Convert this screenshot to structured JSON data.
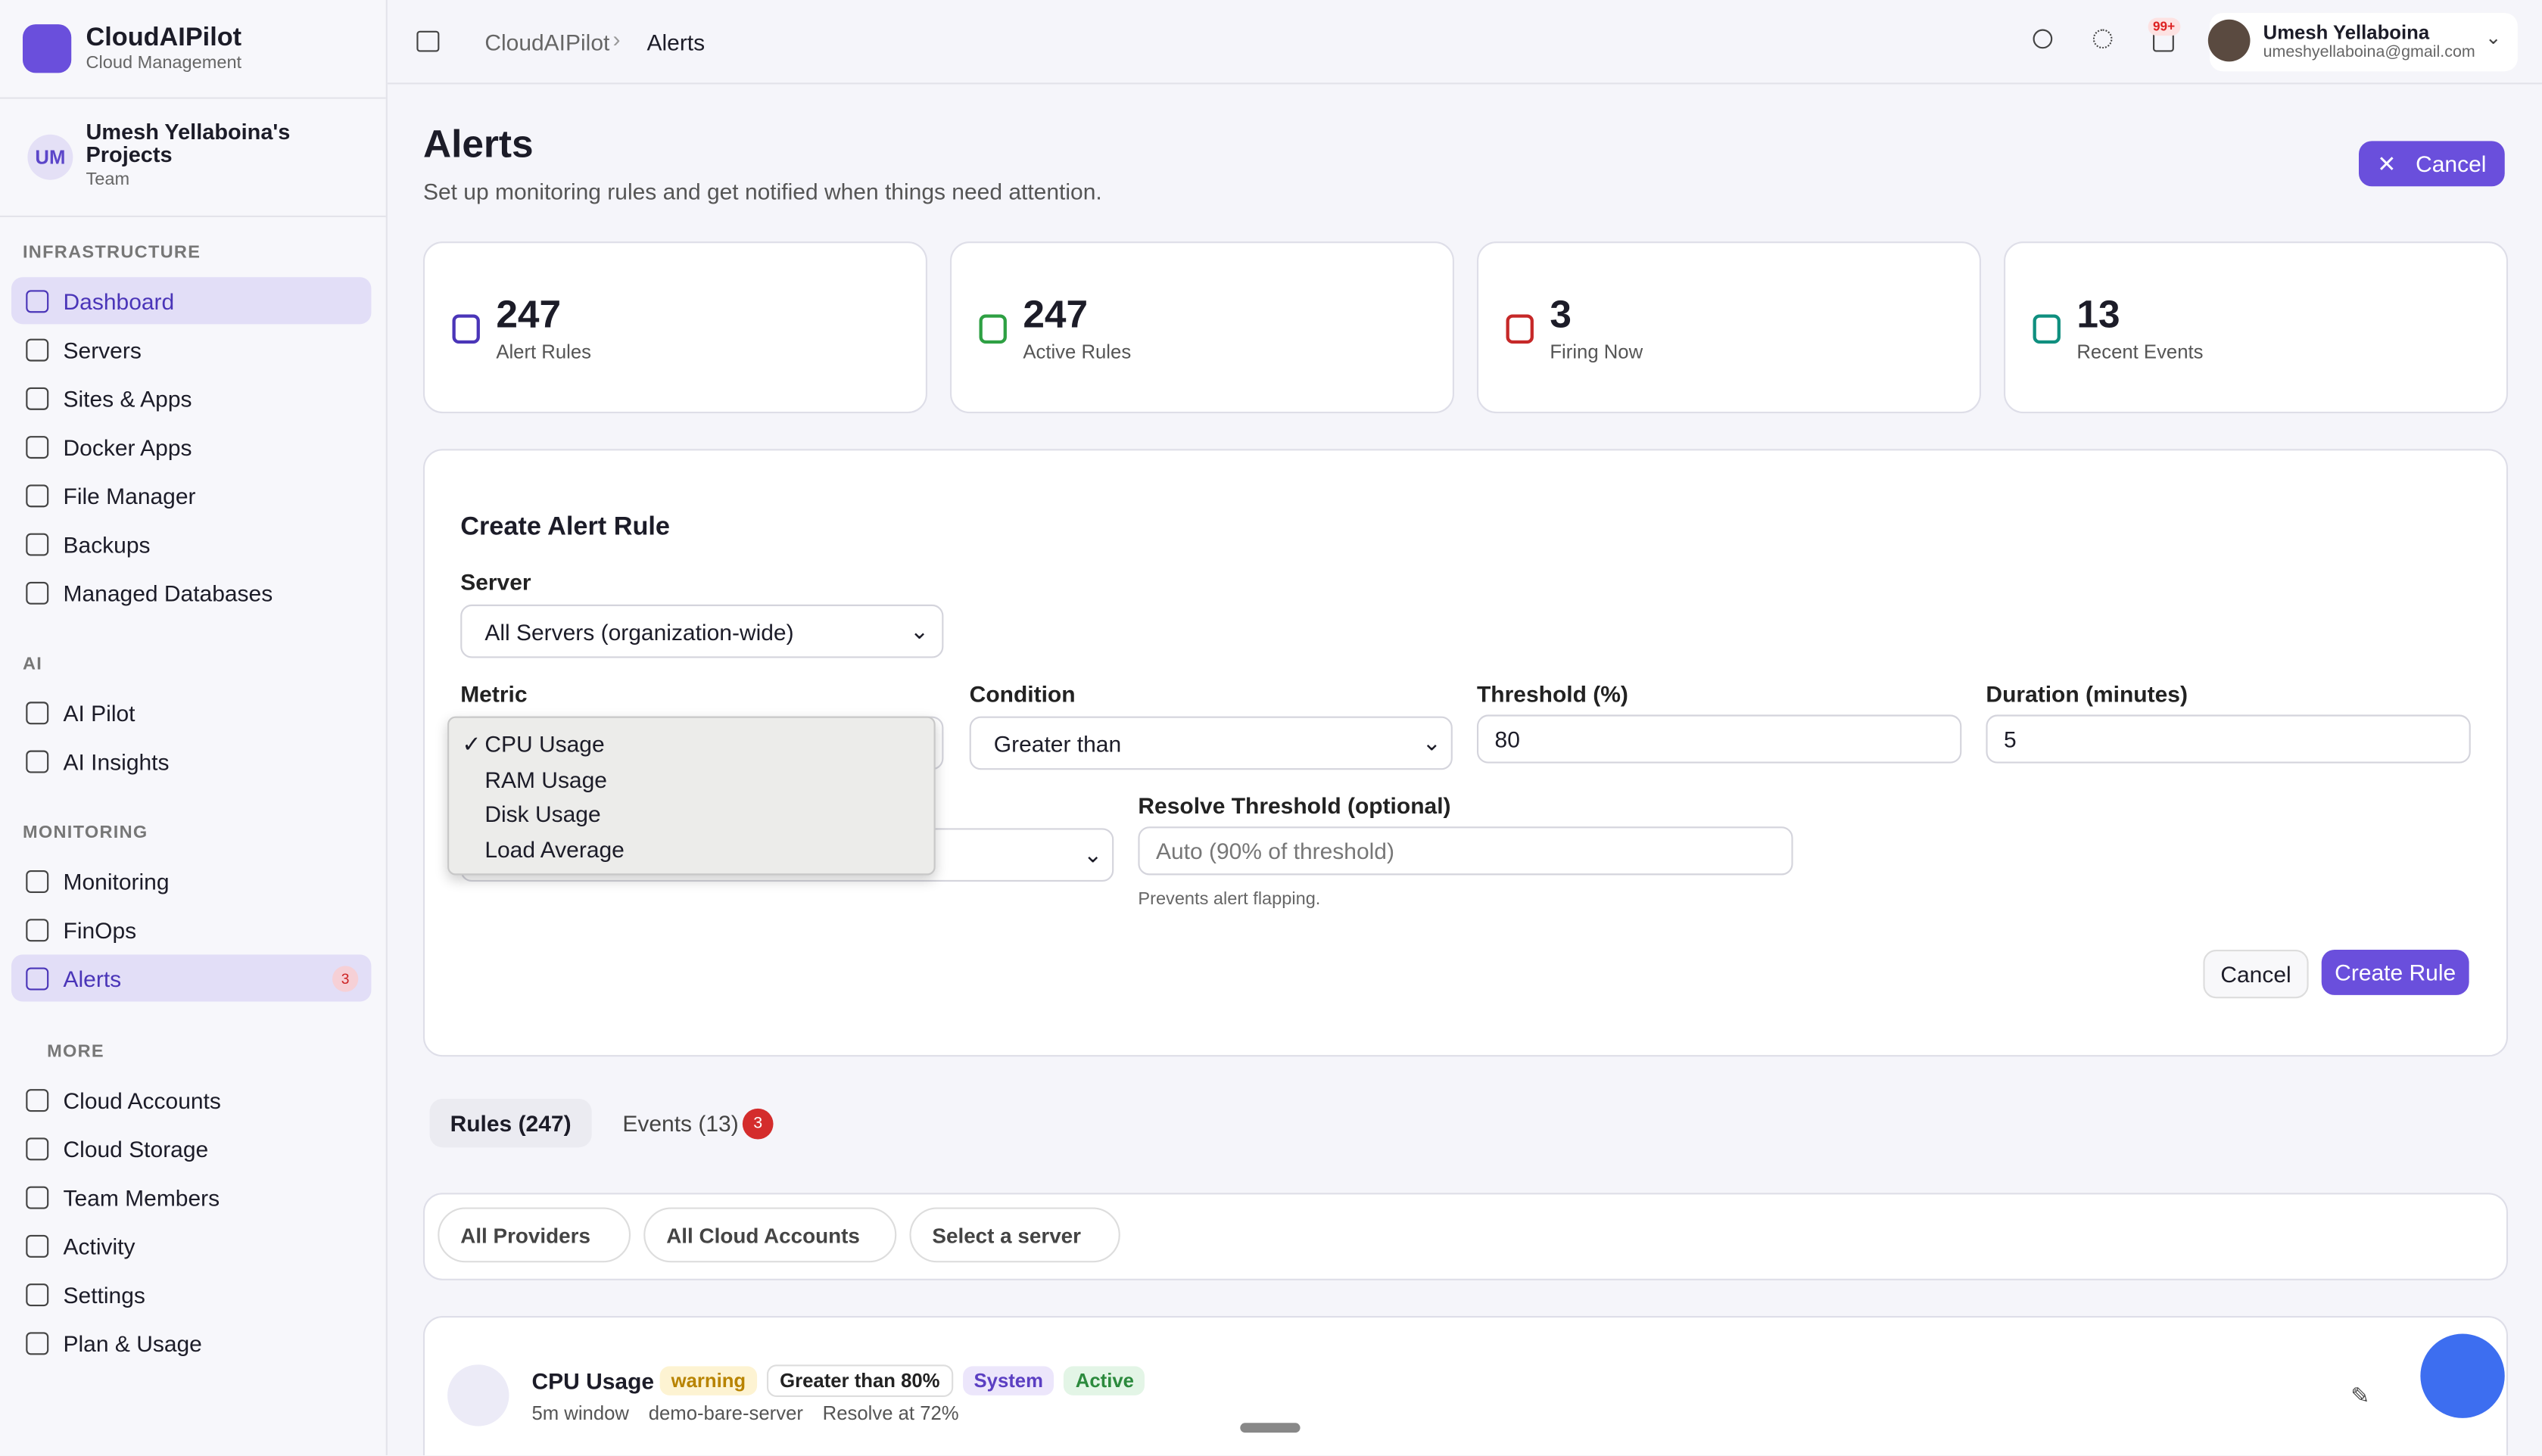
{
  "brand": {
    "name": "CloudAIPilot",
    "sub": "Cloud Management"
  },
  "project": {
    "initials": "UM",
    "name": "Umesh Yellaboina's Projects",
    "role": "Team"
  },
  "nav": {
    "sections": [
      {
        "title": "INFRASTRUCTURE",
        "items": [
          "Dashboard",
          "Servers",
          "Sites & Apps",
          "Docker Apps",
          "File Manager",
          "Backups",
          "Managed Databases"
        ]
      },
      {
        "title": "AI",
        "items": [
          "AI Pilot",
          "AI Insights"
        ]
      },
      {
        "title": "MONITORING",
        "items": [
          "Monitoring",
          "FinOps",
          "Alerts"
        ]
      },
      {
        "title": "MORE",
        "items": [
          "Cloud Accounts",
          "Cloud Storage",
          "Team Members",
          "Activity",
          "Settings",
          "Plan & Usage"
        ]
      }
    ],
    "alerts_badge": "3"
  },
  "header": {
    "breadcrumb": [
      "CloudAIPilot",
      "Alerts"
    ],
    "notif_badge": "99+",
    "user": {
      "name": "Umesh Yellaboina",
      "email": "umeshyellaboina@gmail.com"
    }
  },
  "page": {
    "title": "Alerts",
    "subtitle": "Set up monitoring rules and get notified when things need attention.",
    "cancel": "Cancel"
  },
  "stats": [
    {
      "value": 247,
      "label": "Alert Rules"
    },
    {
      "value": 247,
      "label": "Active Rules"
    },
    {
      "value": 3,
      "label": "Firing Now"
    },
    {
      "value": 13,
      "label": "Recent Events"
    }
  ],
  "form": {
    "title": "Create Alert Rule",
    "server_label": "Server",
    "server_value": "All Servers (organization-wide)",
    "metric_label": "Metric",
    "selected_mark": "✓",
    "metric_options": [
      "CPU Usage",
      "RAM Usage",
      "Disk Usage",
      "Load Average"
    ],
    "condition_label": "Condition",
    "condition_value": "Greater than",
    "threshold_label": "Threshold (%)",
    "threshold_value": "80",
    "duration_label": "Duration (minutes)",
    "duration_value": "5",
    "resolve_label": "Resolve Threshold (optional)",
    "resolve_placeholder": "Auto (90% of threshold)",
    "resolve_help": "Prevents alert flapping.",
    "cancel": "Cancel",
    "submit": "Create Rule"
  },
  "tabs": [
    {
      "label": "Rules (247)"
    },
    {
      "label": "Events (13)",
      "badge": "3"
    }
  ],
  "filters": [
    "All Providers",
    "All Cloud Accounts",
    "Select a server"
  ],
  "rule": {
    "name": "CPU Usage",
    "tags": [
      "warning",
      "Greater than 80%",
      "System",
      "Active"
    ],
    "meta": [
      "5m window",
      "demo-bare-server",
      "Resolve at 72%"
    ]
  }
}
